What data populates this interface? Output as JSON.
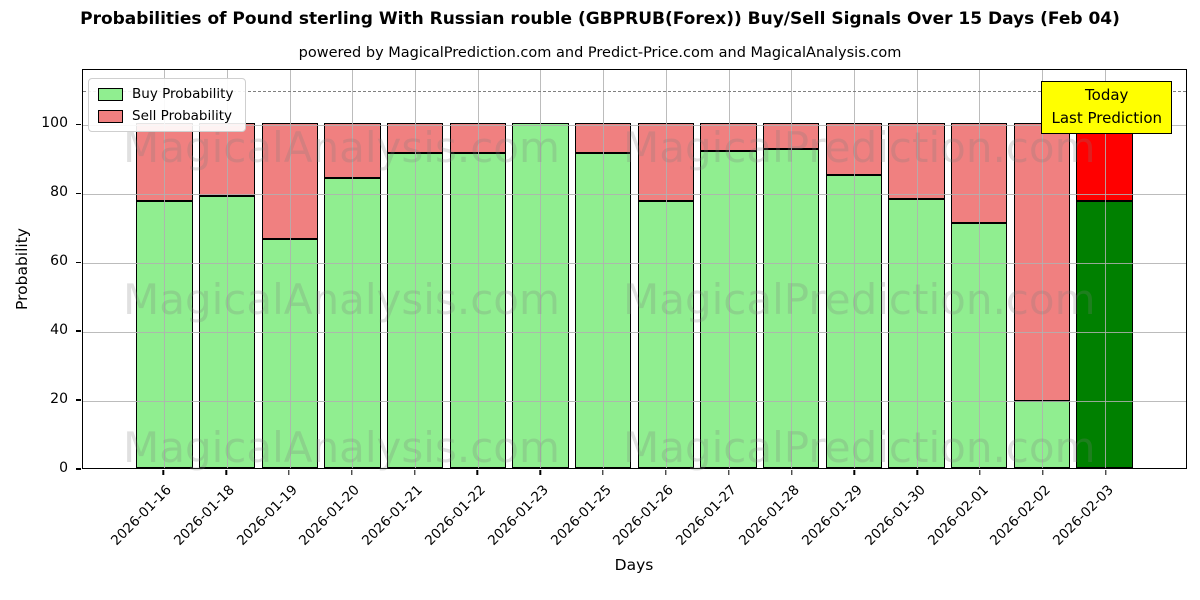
{
  "title": "Probabilities of Pound sterling With Russian rouble (GBPRUB(Forex)) Buy/Sell Signals Over 15 Days (Feb 04)",
  "subtitle": "powered by MagicalPrediction.com and Predict-Price.com and MagicalAnalysis.com",
  "legend": [
    {
      "label": "Buy Probability",
      "color": "#90ee90"
    },
    {
      "label": "Sell Probability",
      "color": "#f08080"
    }
  ],
  "annotation": {
    "lines": [
      "Today",
      "Last Prediction"
    ],
    "bg_color": "#ffff00"
  },
  "watermarks": {
    "left_text": "MagicalAnalysis.com",
    "right_text": "MagicalPrediction.com"
  },
  "chart_data": {
    "type": "bar",
    "stacked": true,
    "title": "Probabilities of Pound sterling With Russian rouble (GBPRUB(Forex)) Buy/Sell Signals Over 15 Days (Feb 04)",
    "xlabel": "Days",
    "ylabel": "Probability",
    "ylim": [
      0,
      116
    ],
    "yticks": [
      0,
      20,
      40,
      60,
      80,
      100
    ],
    "dashed_hline": 110,
    "grid": true,
    "legend_position": "upper left",
    "categories": [
      "2026-01-16",
      "2026-01-18",
      "2026-01-19",
      "2026-01-20",
      "2026-01-21",
      "2026-01-22",
      "2026-01-23",
      "2026-01-25",
      "2026-01-26",
      "2026-01-27",
      "2026-01-28",
      "2026-01-29",
      "2026-01-30",
      "2026-02-01",
      "2026-02-02",
      "2026-02-03"
    ],
    "series": [
      {
        "name": "Buy Probability",
        "color": "#90ee90",
        "values": [
          77.5,
          79,
          66.5,
          84,
          91.5,
          91.5,
          100,
          91.5,
          77.5,
          92,
          92.5,
          85,
          78,
          71,
          19.5,
          77.5
        ]
      },
      {
        "name": "Sell Probability",
        "color": "#f08080",
        "values": [
          22.5,
          21,
          33.5,
          16,
          8.5,
          8.5,
          0,
          8.5,
          22.5,
          8,
          7.5,
          15,
          22,
          29,
          80.5,
          22.5
        ]
      }
    ],
    "last_bar_highlight": {
      "buy_color": "#008000",
      "sell_color": "#ff0000"
    }
  }
}
